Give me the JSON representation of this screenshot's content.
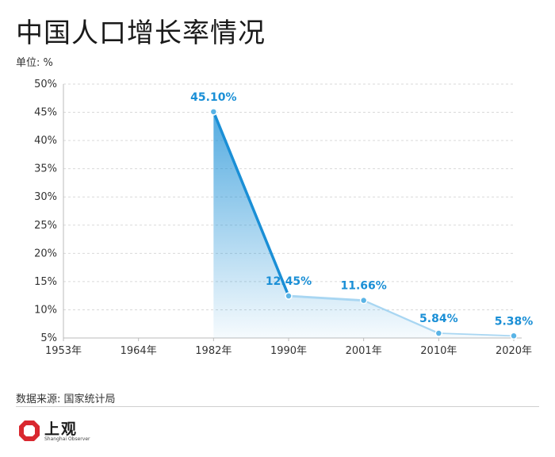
{
  "header": {
    "title": "中国人口增长率情况",
    "unit": "单位: %"
  },
  "footer": {
    "source": "数据来源: 国家统计局",
    "logo_text": "上观",
    "logo_subtext": "Shanghai Observer"
  },
  "colors": {
    "line": "#1a8fd6",
    "marker": "#5ab4e6",
    "label": "#1a8fd6",
    "grid": "#d9d9d9",
    "logo_red": "#d9282f"
  },
  "chart_data": {
    "type": "area",
    "title": "中国人口增长率情况",
    "ylabel": "单位: %",
    "categories": [
      "1953年",
      "1964年",
      "1982年",
      "1990年",
      "2001年",
      "2010年",
      "2020年"
    ],
    "x_ticks": [
      "1953年",
      "1964年",
      "1982年",
      "1990年",
      "2001年",
      "2010年",
      "2020年"
    ],
    "y_ticks": [
      "5%",
      "10%",
      "15%",
      "20%",
      "25%",
      "30%",
      "35%",
      "40%",
      "45%",
      "50%"
    ],
    "ylim": [
      5,
      50
    ],
    "points": [
      {
        "x": "1982年",
        "y": 45.1,
        "label": "45.10%"
      },
      {
        "x": "1990年",
        "y": 12.45,
        "label": "12.45%"
      },
      {
        "x": "2001年",
        "y": 11.66,
        "label": "11.66%"
      },
      {
        "x": "2010年",
        "y": 5.84,
        "label": "5.84%"
      },
      {
        "x": "2020年",
        "y": 5.38,
        "label": "5.38%"
      }
    ],
    "grid": true,
    "legend": "none"
  }
}
